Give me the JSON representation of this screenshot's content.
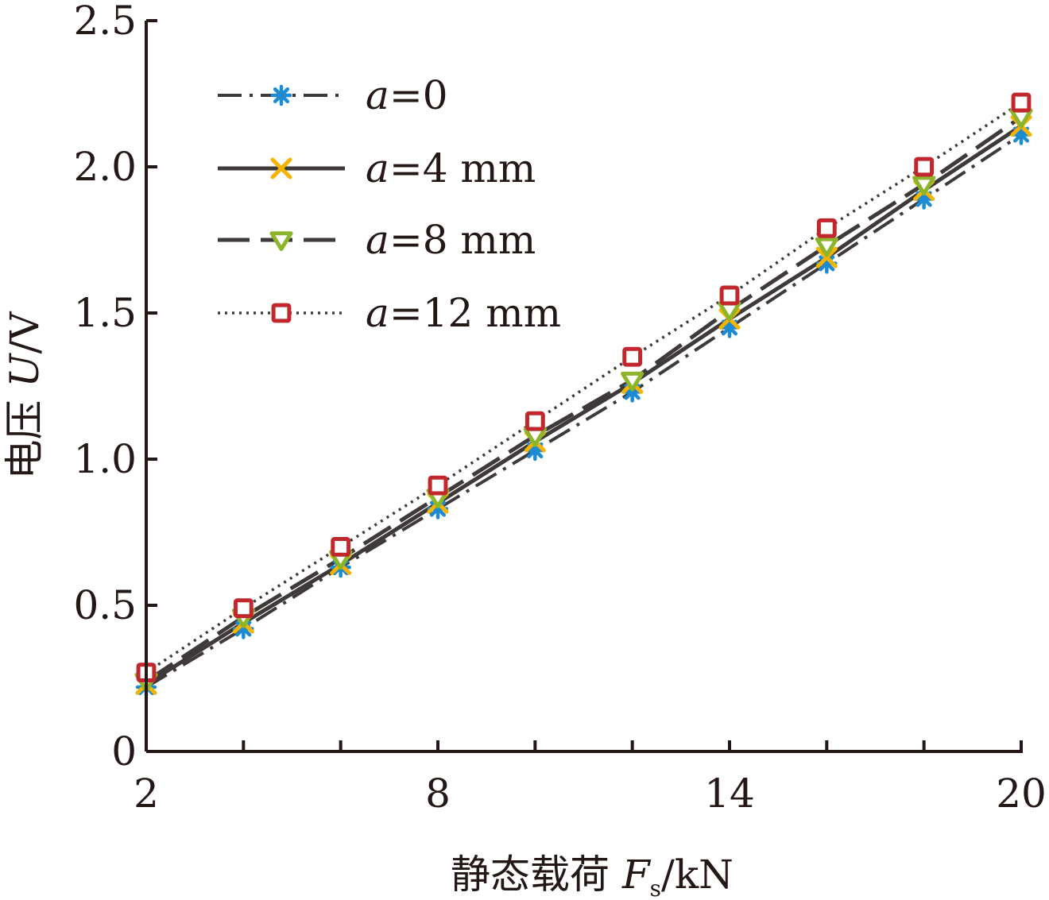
{
  "chart_data": {
    "type": "line",
    "title": "",
    "xlabel": {
      "prefix": "静态载荷 ",
      "symbol": "F",
      "subscript": "s",
      "unit": "/kN"
    },
    "ylabel": {
      "prefix": "电压 ",
      "symbol": "U",
      "unit": "/V"
    },
    "xlim": [
      2,
      20
    ],
    "ylim": [
      0,
      2.5
    ],
    "xticks": [
      2,
      4,
      6,
      8,
      10,
      12,
      14,
      16,
      18,
      20
    ],
    "xtick_labels": [
      {
        "value": 2,
        "label": "2"
      },
      {
        "value": 8,
        "label": "8"
      },
      {
        "value": 14,
        "label": "14"
      },
      {
        "value": 20,
        "label": "20"
      }
    ],
    "yticks": [
      {
        "value": 0,
        "label": "0"
      },
      {
        "value": 0.5,
        "label": "0.5"
      },
      {
        "value": 1.0,
        "label": "1.0"
      },
      {
        "value": 1.5,
        "label": "1.5"
      },
      {
        "value": 2.0,
        "label": "2.0"
      },
      {
        "value": 2.5,
        "label": "2.5"
      }
    ],
    "grid": false,
    "legend_position": "top-left",
    "x": [
      2,
      4,
      6,
      8,
      10,
      12,
      14,
      16,
      18,
      20
    ],
    "series": [
      {
        "var": "a",
        "eq": "=0",
        "line_style": "dash-dot",
        "line_color": "#3e3a39",
        "marker": "asterisk",
        "marker_color": "#1d8bd1",
        "values": [
          0.22,
          0.42,
          0.63,
          0.83,
          1.03,
          1.23,
          1.45,
          1.67,
          1.89,
          2.11
        ]
      },
      {
        "var": "a",
        "eq": "=4 mm",
        "line_style": "solid",
        "line_color": "#3e3a39",
        "marker": "x",
        "marker_color": "#f4b400",
        "values": [
          0.23,
          0.44,
          0.64,
          0.85,
          1.06,
          1.26,
          1.48,
          1.69,
          1.92,
          2.14
        ]
      },
      {
        "var": "a",
        "eq": "=8 mm",
        "line_style": "dashed",
        "line_color": "#3e3a39",
        "marker": "triangle-down",
        "marker_color": "#8db52b",
        "values": [
          0.24,
          0.46,
          0.66,
          0.87,
          1.08,
          1.27,
          1.51,
          1.73,
          1.94,
          2.17
        ]
      },
      {
        "var": "a",
        "eq": "=12 mm",
        "line_style": "dotted",
        "line_color": "#3e3a39",
        "marker": "square",
        "marker_color": "#c1272d",
        "values": [
          0.27,
          0.49,
          0.7,
          0.91,
          1.13,
          1.35,
          1.56,
          1.79,
          2.0,
          2.22
        ]
      }
    ]
  }
}
